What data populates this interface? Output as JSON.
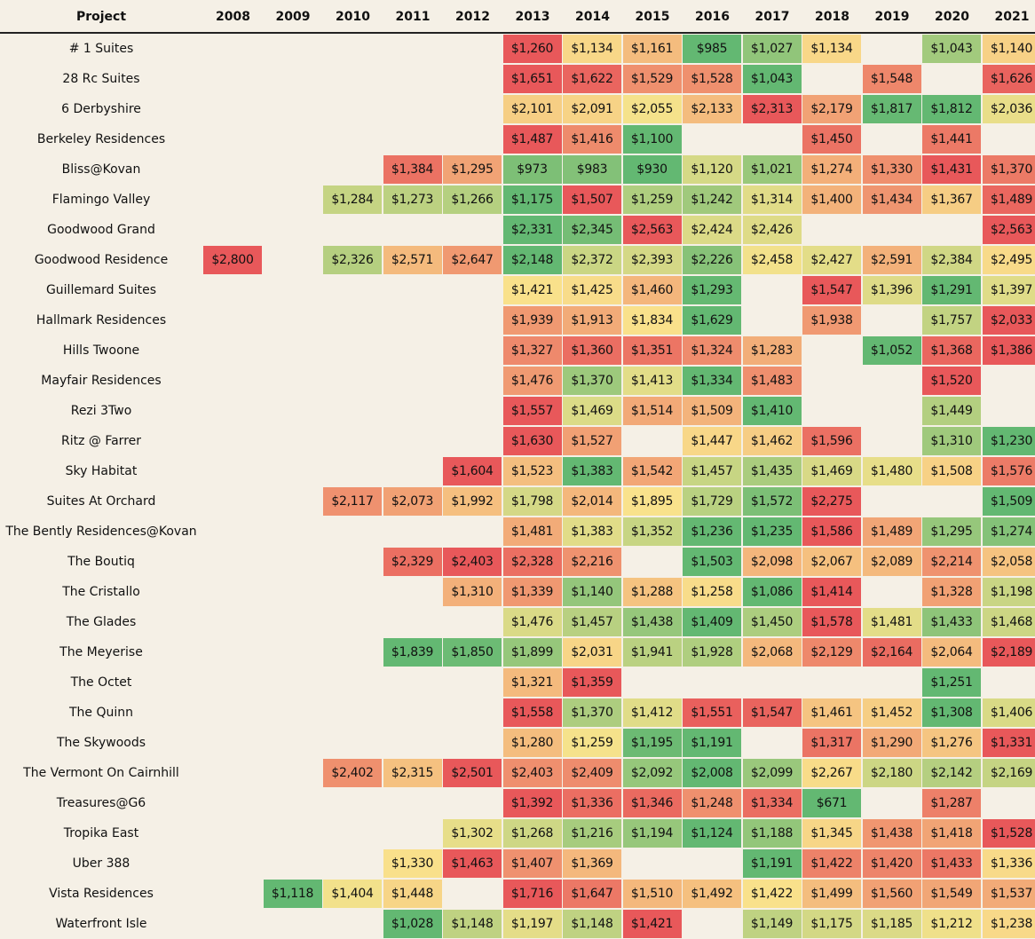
{
  "header": {
    "project_label": "Project"
  },
  "chart_data": {
    "type": "heatmap",
    "x": [
      "2008",
      "2009",
      "2010",
      "2011",
      "2012",
      "2013",
      "2014",
      "2015",
      "2016",
      "2017",
      "2018",
      "2019",
      "2020",
      "2021"
    ],
    "rows": [
      {
        "project": "# 1 Suites",
        "values": [
          null,
          null,
          null,
          null,
          null,
          1260,
          1134,
          1161,
          985,
          1027,
          1134,
          null,
          1043,
          1140
        ]
      },
      {
        "project": "28 Rc Suites",
        "values": [
          null,
          null,
          null,
          null,
          null,
          1651,
          1622,
          1529,
          1528,
          1043,
          null,
          1548,
          null,
          1626
        ]
      },
      {
        "project": "6 Derbyshire",
        "values": [
          null,
          null,
          null,
          null,
          null,
          2101,
          2091,
          2055,
          2133,
          2313,
          2179,
          1817,
          1812,
          2036
        ]
      },
      {
        "project": "Berkeley Residences",
        "values": [
          null,
          null,
          null,
          null,
          null,
          1487,
          1416,
          1100,
          null,
          null,
          1450,
          null,
          1441,
          null
        ]
      },
      {
        "project": "Bliss@Kovan",
        "values": [
          null,
          null,
          null,
          1384,
          1295,
          973,
          983,
          930,
          1120,
          1021,
          1274,
          1330,
          1431,
          1370
        ]
      },
      {
        "project": "Flamingo Valley",
        "values": [
          null,
          null,
          1284,
          1273,
          1266,
          1175,
          1507,
          1259,
          1242,
          1314,
          1400,
          1434,
          1367,
          1489
        ]
      },
      {
        "project": "Goodwood Grand",
        "values": [
          null,
          null,
          null,
          null,
          null,
          2331,
          2345,
          2563,
          2424,
          2426,
          null,
          null,
          null,
          2563
        ]
      },
      {
        "project": "Goodwood Residence",
        "values": [
          2800,
          null,
          2326,
          2571,
          2647,
          2148,
          2372,
          2393,
          2226,
          2458,
          2427,
          2591,
          2384,
          2495
        ]
      },
      {
        "project": "Guillemard Suites",
        "values": [
          null,
          null,
          null,
          null,
          null,
          1421,
          1425,
          1460,
          1293,
          null,
          1547,
          1396,
          1291,
          1397
        ]
      },
      {
        "project": "Hallmark Residences",
        "values": [
          null,
          null,
          null,
          null,
          null,
          1939,
          1913,
          1834,
          1629,
          null,
          1938,
          null,
          1757,
          2033
        ]
      },
      {
        "project": "Hills Twoone",
        "values": [
          null,
          null,
          null,
          null,
          null,
          1327,
          1360,
          1351,
          1324,
          1283,
          null,
          1052,
          1368,
          1386
        ]
      },
      {
        "project": "Mayfair Residences",
        "values": [
          null,
          null,
          null,
          null,
          null,
          1476,
          1370,
          1413,
          1334,
          1483,
          null,
          null,
          1520,
          null
        ]
      },
      {
        "project": "Rezi 3Two",
        "values": [
          null,
          null,
          null,
          null,
          null,
          1557,
          1469,
          1514,
          1509,
          1410,
          null,
          null,
          1449,
          null
        ]
      },
      {
        "project": "Ritz @ Farrer",
        "values": [
          null,
          null,
          null,
          null,
          null,
          1630,
          1527,
          null,
          1447,
          1462,
          1596,
          null,
          1310,
          1230
        ]
      },
      {
        "project": "Sky Habitat",
        "values": [
          null,
          null,
          null,
          null,
          1604,
          1523,
          1383,
          1542,
          1457,
          1435,
          1469,
          1480,
          1508,
          1576
        ]
      },
      {
        "project": "Suites At Orchard",
        "values": [
          null,
          null,
          2117,
          2073,
          1992,
          1798,
          2014,
          1895,
          1729,
          1572,
          2275,
          null,
          null,
          1509
        ]
      },
      {
        "project": "The Bently Residences@Kovan",
        "values": [
          null,
          null,
          null,
          null,
          null,
          1481,
          1383,
          1352,
          1236,
          1235,
          1586,
          1489,
          1295,
          1274
        ]
      },
      {
        "project": "The Boutiq",
        "values": [
          null,
          null,
          null,
          2329,
          2403,
          2328,
          2216,
          null,
          1503,
          2098,
          2067,
          2089,
          2214,
          2058
        ]
      },
      {
        "project": "The Cristallo",
        "values": [
          null,
          null,
          null,
          null,
          1310,
          1339,
          1140,
          1288,
          1258,
          1086,
          1414,
          null,
          1328,
          1198
        ]
      },
      {
        "project": "The Glades",
        "values": [
          null,
          null,
          null,
          null,
          null,
          1476,
          1457,
          1438,
          1409,
          1450,
          1578,
          1481,
          1433,
          1468
        ]
      },
      {
        "project": "The Meyerise",
        "values": [
          null,
          null,
          null,
          1839,
          1850,
          1899,
          2031,
          1941,
          1928,
          2068,
          2129,
          2164,
          2064,
          2189
        ]
      },
      {
        "project": "The Octet",
        "values": [
          null,
          null,
          null,
          null,
          null,
          1321,
          1359,
          null,
          null,
          null,
          null,
          null,
          1251,
          null
        ]
      },
      {
        "project": "The Quinn",
        "values": [
          null,
          null,
          null,
          null,
          null,
          1558,
          1370,
          1412,
          1551,
          1547,
          1461,
          1452,
          1308,
          1406
        ]
      },
      {
        "project": "The Skywoods",
        "values": [
          null,
          null,
          null,
          null,
          null,
          1280,
          1259,
          1195,
          1191,
          null,
          1317,
          1290,
          1276,
          1331
        ]
      },
      {
        "project": "The Vermont On Cairnhill",
        "values": [
          null,
          null,
          2402,
          2315,
          2501,
          2403,
          2409,
          2092,
          2008,
          2099,
          2267,
          2180,
          2142,
          2169
        ]
      },
      {
        "project": "Treasures@G6",
        "values": [
          null,
          null,
          null,
          null,
          null,
          1392,
          1336,
          1346,
          1248,
          1334,
          671,
          null,
          1287,
          null
        ]
      },
      {
        "project": "Tropika East",
        "values": [
          null,
          null,
          null,
          null,
          1302,
          1268,
          1216,
          1194,
          1124,
          1188,
          1345,
          1438,
          1418,
          1528
        ]
      },
      {
        "project": "Uber 388",
        "values": [
          null,
          null,
          null,
          1330,
          1463,
          1407,
          1369,
          null,
          null,
          1191,
          1422,
          1420,
          1433,
          1336
        ]
      },
      {
        "project": "Vista Residences",
        "values": [
          null,
          1118,
          1404,
          1448,
          null,
          1716,
          1647,
          1510,
          1492,
          1422,
          1499,
          1560,
          1549,
          1537
        ]
      },
      {
        "project": "Waterfront Isle",
        "values": [
          null,
          null,
          null,
          1028,
          1148,
          1197,
          1148,
          1421,
          null,
          1149,
          1175,
          1185,
          1212,
          1238
        ]
      }
    ],
    "color_scale": {
      "low": "#63b872",
      "mid": "#f9e38c",
      "high": "#e8585a"
    },
    "value_prefix": "$"
  }
}
